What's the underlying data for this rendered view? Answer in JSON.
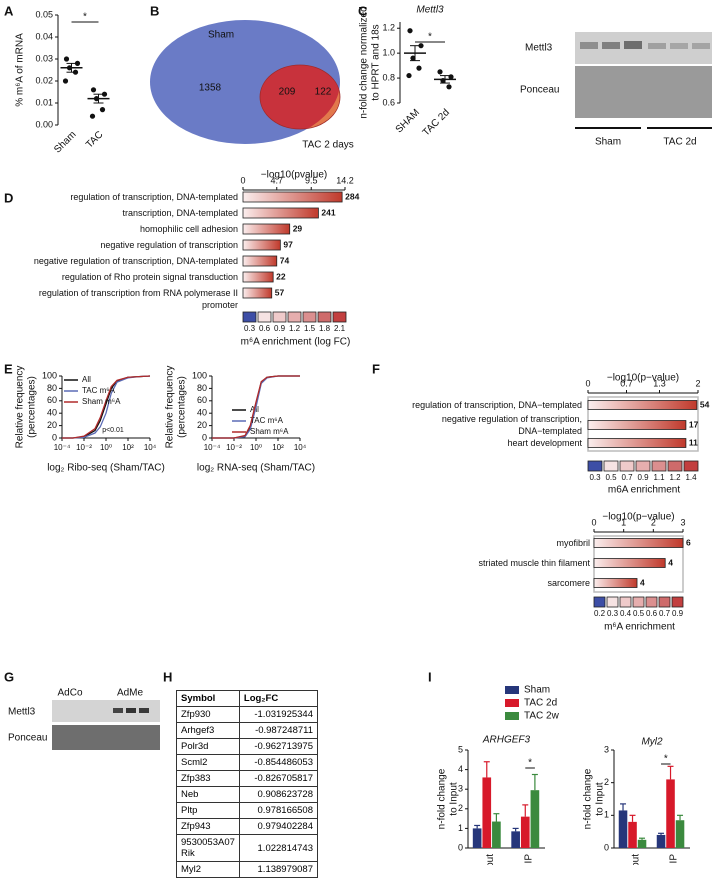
{
  "chart_data": [
    {
      "type": "dot",
      "panel": "A",
      "ylabel": [
        "% m⁶A of mRNA"
      ],
      "categories": [
        "Sham",
        "TAC"
      ],
      "points": [
        [
          0.03,
          0.028,
          0.026,
          0.024,
          0.02
        ],
        [
          0.016,
          0.014,
          0.012,
          0.007,
          0.004
        ]
      ],
      "means": [
        0.026,
        0.012
      ],
      "errors": [
        0.002,
        0.002
      ],
      "ylim": [
        0,
        0.05
      ],
      "yticks": [
        {
          "value": 0,
          "label": "0.00"
        },
        0.01,
        0.02,
        0.03,
        0.04,
        0.05
      ],
      "significance": "*"
    },
    {
      "type": "dot",
      "panel": "C",
      "title": "Mettl3",
      "ylabel": [
        "n-fold change normalized",
        "to HPRT and 18s"
      ],
      "categories": [
        "SHAM",
        "TAC 2d"
      ],
      "points": [
        [
          1.18,
          1.06,
          0.96,
          0.88,
          0.82
        ],
        [
          0.85,
          0.81,
          0.78,
          0.73
        ]
      ],
      "means": [
        1.0,
        0.79
      ],
      "errors": [
        0.06,
        0.03
      ],
      "ylim": [
        0.6,
        1.25
      ],
      "yticks": [
        0.6,
        0.8,
        {
          "value": 1,
          "label": "1.0"
        },
        1.2
      ],
      "significance": "*"
    },
    {
      "type": "hbar",
      "panel": "D",
      "title": "−log10(pvalue)",
      "categories": [
        "regulation of transcription, DNA-templated",
        "transcription, DNA-templated",
        "homophilic cell adhesion",
        "negative regulation of transcription",
        "negative regulation of transcription, DNA-templated",
        "regulation of Rho protein signal transduction",
        "regulation of transcription from RNA polymerase II promoter"
      ],
      "values": [
        13.8,
        10.5,
        6.5,
        5.2,
        4.7,
        4.2,
        4.0
      ],
      "counts": [
        284,
        241,
        29,
        97,
        74,
        22,
        57
      ],
      "color": "#c0392b",
      "xlim": [
        0,
        14.2
      ],
      "xticks": [
        0,
        4.7,
        9.5,
        14.2
      ],
      "colorscale": {
        "label": "m⁶A enrichment (log FC)",
        "values": [
          0.3,
          0.6,
          0.9,
          1.2,
          1.5,
          1.8,
          2.1
        ],
        "colors": [
          "#3d4ea6",
          "#f6e3e3",
          "#efcaca",
          "#e6aeae",
          "#db8f8f",
          "#ce6b6b",
          "#c23f3f"
        ]
      }
    },
    {
      "type": "line",
      "panel": "E",
      "xlog": true,
      "ylabel": [
        "Relative frequency",
        "(percentages)"
      ],
      "xlabel": "log₂ Ribo-seq (Sham/TAC)",
      "annotation": "p<0.01",
      "x": [
        0.0001,
        0.001,
        0.01,
        0.1,
        0.3,
        1,
        3,
        10,
        100,
        1000,
        10000
      ],
      "xlim": [
        0.0001,
        10000
      ],
      "xticks": [
        {
          "value": 0.0001,
          "label": "10⁻⁴"
        },
        {
          "value": 0.01,
          "label": "10⁻²"
        },
        {
          "value": 1,
          "label": "10⁰"
        },
        {
          "value": 100,
          "label": "10²"
        },
        {
          "value": 10000,
          "label": "10⁴"
        }
      ],
      "ylim": [
        0,
        100
      ],
      "yticks": [
        0,
        20,
        40,
        60,
        80,
        100
      ],
      "legend": "upper left",
      "series": [
        {
          "name": "All",
          "color": "#111111",
          "values": [
            0,
            0,
            2,
            12,
            28,
            55,
            80,
            92,
            98,
            99,
            100
          ]
        },
        {
          "name": "TAC m⁶A",
          "color": "#5b6bb5",
          "values": [
            0,
            0,
            1,
            8,
            18,
            40,
            72,
            90,
            97,
            99,
            100
          ]
        },
        {
          "name": "Sham m⁶A",
          "color": "#b02a2a",
          "values": [
            0,
            0,
            3,
            15,
            33,
            60,
            83,
            93,
            98,
            99,
            100
          ]
        }
      ]
    },
    {
      "type": "line",
      "xlog": true,
      "ylabel": [
        "Relative frequency",
        "(percentages)"
      ],
      "xlabel": "log₂ RNA-seq (Sham/TAC)",
      "x": [
        0.0001,
        0.001,
        0.01,
        0.1,
        0.3,
        1,
        3,
        10,
        100,
        1000,
        10000
      ],
      "xlim": [
        0.0001,
        10000
      ],
      "xticks": [
        {
          "value": 0.0001,
          "label": "10⁻⁴"
        },
        {
          "value": 0.01,
          "label": "10⁻²"
        },
        {
          "value": 1,
          "label": "10⁰"
        },
        {
          "value": 100,
          "label": "10²"
        },
        {
          "value": 10000,
          "label": "10⁴"
        }
      ],
      "ylim": [
        0,
        100
      ],
      "yticks": [
        0,
        20,
        40,
        60,
        80,
        100
      ],
      "legend": "lower right",
      "series": [
        {
          "name": "All",
          "color": "#111111",
          "values": [
            0,
            0,
            0,
            3,
            18,
            55,
            90,
            98,
            100,
            100,
            100
          ]
        },
        {
          "name": "TAC m⁶A",
          "color": "#5b6bb5",
          "values": [
            0,
            0,
            0,
            2,
            14,
            50,
            88,
            97,
            100,
            100,
            100
          ]
        },
        {
          "name": "Sham m⁶A",
          "color": "#b02a2a",
          "values": [
            0,
            0,
            0,
            4,
            20,
            58,
            91,
            98,
            100,
            100,
            100
          ]
        }
      ]
    },
    {
      "type": "hbar",
      "panel": "F",
      "title": "−log10(p−value)",
      "categories": [
        "regulation of transcription, DNA−templated",
        "negative regulation of transcription, DNA−templated",
        "heart development"
      ],
      "values": [
        1.98,
        1.78,
        1.78
      ],
      "counts": [
        54,
        17,
        11
      ],
      "color": "#c0392b",
      "xlim": [
        0,
        2
      ],
      "xticks": [
        0,
        0.7,
        1.3,
        2
      ],
      "colorscale": {
        "label": "m6A enrichment",
        "values": [
          0.3,
          0.5,
          0.7,
          0.9,
          1.1,
          1.2,
          1.4
        ],
        "colors": [
          "#3d4ea6",
          "#f6e3e3",
          "#efcaca",
          "#e6aeae",
          "#db8f8f",
          "#ce6b6b",
          "#c23f3f"
        ]
      }
    },
    {
      "type": "hbar",
      "title": "−log10(p−value)",
      "categories": [
        "myofibril",
        "striated muscle thin filament",
        "sarcomere"
      ],
      "values": [
        3,
        2.4,
        1.45
      ],
      "counts": [
        6,
        4,
        4
      ],
      "color": "#c0392b",
      "xlim": [
        0,
        3
      ],
      "xticks": [
        0,
        1,
        2,
        3
      ],
      "colorscale": {
        "label": "m⁶A enrichment",
        "values": [
          0.2,
          0.3,
          0.4,
          0.5,
          0.6,
          0.7,
          0.9
        ],
        "colors": [
          "#3d4ea6",
          "#f6e3e3",
          "#efcaca",
          "#e6aeae",
          "#db8f8f",
          "#ce6b6b",
          "#c23f3f"
        ]
      }
    },
    {
      "type": "grouped_bar",
      "panel": "I",
      "title": "ARHGEF3",
      "ylabel": [
        "n-fold change",
        "to Input"
      ],
      "categories": [
        "Input",
        "IP"
      ],
      "ylim": [
        0,
        5
      ],
      "yticks": [
        0,
        1,
        2,
        3,
        4,
        5
      ],
      "significance": "*",
      "series": [
        {
          "name": "Sham",
          "color": "#26367a",
          "values": [
            1.0,
            0.85
          ],
          "errors": [
            0.15,
            0.15
          ]
        },
        {
          "name": "TAC 2d",
          "color": "#d7192a",
          "values": [
            3.6,
            1.6
          ],
          "errors": [
            0.8,
            0.6
          ]
        },
        {
          "name": "TAC 2w",
          "color": "#3b8a3e",
          "values": [
            1.35,
            2.95
          ],
          "errors": [
            0.4,
            0.8
          ]
        }
      ]
    },
    {
      "type": "grouped_bar",
      "title": "Myl2",
      "ylabel": [
        "n-fold change",
        "to Input"
      ],
      "categories": [
        "Input",
        "IP"
      ],
      "ylim": [
        0,
        3
      ],
      "yticks": [
        0,
        1,
        2,
        3
      ],
      "significance": "*",
      "series": [
        {
          "color": "#26367a",
          "values": [
            1.15,
            0.4
          ],
          "errors": [
            0.2,
            0.05
          ]
        },
        {
          "color": "#d7192a",
          "values": [
            0.8,
            2.1
          ],
          "errors": [
            0.2,
            0.4
          ]
        },
        {
          "color": "#3b8a3e",
          "values": [
            0.25,
            0.85
          ],
          "errors": [
            0.05,
            0.15
          ]
        }
      ]
    }
  ],
  "venn": {
    "panel": "B",
    "sets": [
      "Sham",
      "TAC 2 days"
    ],
    "counts": [
      1358,
      209,
      122
    ]
  },
  "blot_c": {
    "labels": [
      "Mettl3",
      "Ponceau"
    ],
    "groups": [
      "Sham",
      "TAC 2d"
    ]
  },
  "blot_g": {
    "panel": "G",
    "groups": [
      "AdCo",
      "AdMe"
    ],
    "labels": [
      "Mettl3",
      "Ponceau"
    ]
  },
  "table": {
    "panel": "H",
    "header": [
      "Symbol",
      "Log₂FC"
    ],
    "rows": [
      [
        "Zfp930",
        -1.031925344
      ],
      [
        "Arhgef3",
        -0.987248711
      ],
      [
        "Polr3d",
        -0.962713975
      ],
      [
        "Scml2",
        -0.854486053
      ],
      [
        "Zfp383",
        -0.826705817
      ],
      [
        "Neb",
        0.908623728
      ],
      [
        "Pltp",
        0.978166508
      ],
      [
        "Zfp943",
        0.979402284
      ],
      [
        "9530053A07 Rik",
        1.022814743
      ],
      [
        "Myl2",
        1.138979087
      ]
    ]
  }
}
